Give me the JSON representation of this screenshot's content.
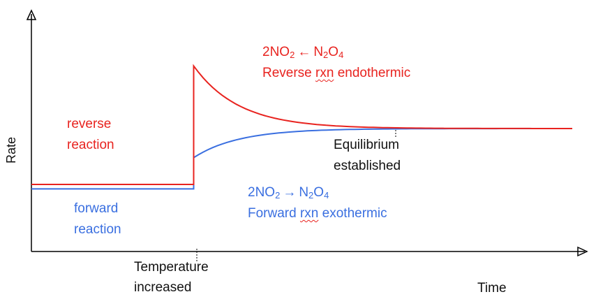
{
  "chart_data": {
    "type": "line",
    "title": "",
    "xlabel": "Time",
    "ylabel": "Rate",
    "x_event_label": [
      "Temperature",
      "increased"
    ],
    "equilibrium_label": [
      "Equilibrium",
      "established"
    ],
    "series": [
      {
        "name": "reverse reaction",
        "label_lines": [
          "reverse",
          "reaction"
        ],
        "color": "#e8231f",
        "initial_rate": 0.3,
        "jump_rate": 0.83,
        "final_rate": 0.55
      },
      {
        "name": "forward reaction",
        "label_lines": [
          "forward",
          "reaction"
        ],
        "color": "#3a6fe0",
        "initial_rate": 0.28,
        "jump_rate": 0.42,
        "final_rate": 0.55
      }
    ],
    "event_time": 0.3,
    "equilibrium_time": 0.66,
    "reverse_annotation": {
      "lhs": "2NO",
      "lhs_sub": "2",
      "arrow": "←",
      "rhs_a": "N",
      "rhs_sub1": "2",
      "rhs_b": "O",
      "rhs_sub2": "4",
      "line2_a": "Reverse ",
      "line2_wavy": "rxn",
      "line2_b": " endothermic"
    },
    "forward_annotation": {
      "lhs": "2NO",
      "lhs_sub": "2",
      "arrow": "→",
      "rhs_a": "N",
      "rhs_sub1": "2",
      "rhs_b": "O",
      "rhs_sub2": "4",
      "line2_a": "Forward ",
      "line2_wavy": "rxn",
      "line2_b": " exothermic"
    }
  }
}
